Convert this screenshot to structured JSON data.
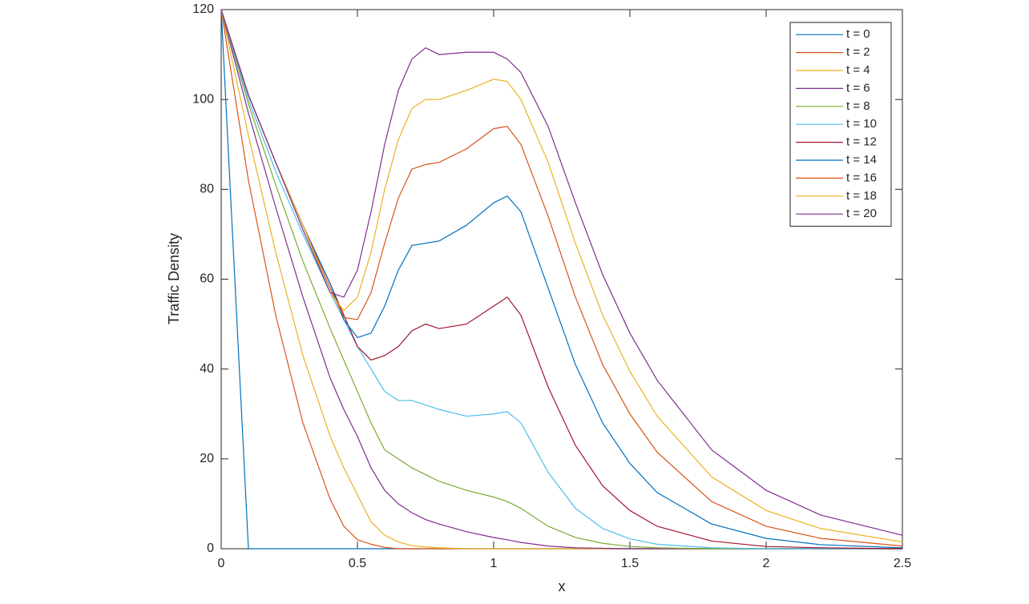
{
  "chart_data": {
    "type": "line",
    "xlabel": "x",
    "ylabel": "Traffic Density",
    "xlim": [
      0,
      2.5
    ],
    "xticks": [
      0,
      0.5,
      1,
      1.5,
      2,
      2.5
    ],
    "ylim": [
      0,
      120
    ],
    "yticks": [
      0,
      20,
      40,
      60,
      80,
      100,
      120
    ],
    "legend": "northeast",
    "x": [
      0,
      0.1,
      0.2,
      0.3,
      0.4,
      0.45,
      0.5,
      0.55,
      0.6,
      0.65,
      0.7,
      0.75,
      0.8,
      0.9,
      1.0,
      1.05,
      1.1,
      1.2,
      1.3,
      1.4,
      1.5,
      1.6,
      1.8,
      2.0,
      2.2,
      2.5
    ],
    "series": [
      {
        "name": "t = 0",
        "color": "#0072BD",
        "values": [
          120,
          0,
          0,
          0,
          0,
          0,
          0,
          0,
          0,
          0,
          0,
          0,
          0,
          0,
          0,
          0,
          0,
          0,
          0,
          0,
          0,
          0,
          0,
          0,
          0,
          0
        ]
      },
      {
        "name": "t = 2",
        "color": "#D95319",
        "values": [
          120,
          82,
          52,
          28,
          11,
          5,
          2,
          1,
          0.3,
          0,
          0,
          0,
          0,
          0,
          0,
          0,
          0,
          0,
          0,
          0,
          0,
          0,
          0,
          0,
          0,
          0
        ]
      },
      {
        "name": "t = 4",
        "color": "#EDB120",
        "values": [
          120,
          92,
          66,
          43,
          25,
          18,
          12,
          6,
          3,
          1.5,
          0.7,
          0.4,
          0.2,
          0,
          0,
          0,
          0,
          0,
          0,
          0,
          0,
          0,
          0,
          0,
          0,
          0
        ]
      },
      {
        "name": "t = 6",
        "color": "#7E2F8E",
        "values": [
          120,
          97,
          76,
          56,
          38,
          31,
          25,
          18,
          13,
          10,
          8,
          6.5,
          5.5,
          3.8,
          2.5,
          2,
          1.4,
          0.6,
          0.2,
          0.1,
          0,
          0,
          0,
          0,
          0,
          0
        ]
      },
      {
        "name": "t = 8",
        "color": "#77AC30",
        "values": [
          120,
          99,
          81,
          64,
          49,
          42,
          35,
          28,
          22,
          20,
          18,
          16.5,
          15,
          13,
          11.5,
          10.5,
          9,
          5,
          2.5,
          1.2,
          0.5,
          0.2,
          0,
          0,
          0,
          0
        ]
      },
      {
        "name": "t = 10",
        "color": "#4DBEEE",
        "values": [
          120,
          100,
          84,
          70,
          57,
          51,
          45,
          40,
          35,
          33,
          33,
          32,
          31,
          29.5,
          30,
          30.5,
          28,
          17,
          9,
          4.5,
          2.2,
          1,
          0.2,
          0,
          0,
          0
        ]
      },
      {
        "name": "t = 12",
        "color": "#A2142F",
        "values": [
          120,
          101,
          86,
          72,
          59,
          52,
          45,
          42,
          43,
          45,
          48.5,
          50,
          49,
          50,
          54,
          56,
          52,
          36,
          23,
          14,
          8.5,
          5,
          1.7,
          0.5,
          0.2,
          0
        ]
      },
      {
        "name": "t = 14",
        "color": "#0072BD",
        "values": [
          120,
          101,
          86,
          72,
          59,
          51,
          47,
          48,
          54,
          62,
          67.5,
          68,
          68.5,
          72,
          77,
          78.5,
          75,
          58,
          41,
          28,
          19,
          12.5,
          5.5,
          2.3,
          0.9,
          0.2
        ]
      },
      {
        "name": "t = 16",
        "color": "#D95319",
        "values": [
          120,
          101,
          86,
          72,
          58,
          51.5,
          51,
          57,
          68,
          78,
          84.5,
          85.5,
          86,
          89,
          93.5,
          94,
          90,
          74,
          56,
          41,
          30,
          21.5,
          10.5,
          5,
          2.3,
          0.6
        ]
      },
      {
        "name": "t = 18",
        "color": "#EDB120",
        "values": [
          120,
          101,
          86,
          72,
          57,
          53,
          56,
          66,
          80,
          91,
          98,
          100,
          100,
          102,
          104.5,
          104,
          100,
          86,
          68,
          52,
          39.5,
          29.5,
          16,
          8.5,
          4.5,
          1.5
        ]
      },
      {
        "name": "t = 20",
        "color": "#7E2F8E",
        "values": [
          120,
          101,
          86,
          71,
          57,
          56,
          62,
          75,
          90,
          102,
          109,
          111.5,
          110,
          110.5,
          110.5,
          109,
          106,
          94,
          77,
          61,
          48,
          37.5,
          22,
          13,
          7.5,
          3
        ]
      }
    ]
  }
}
